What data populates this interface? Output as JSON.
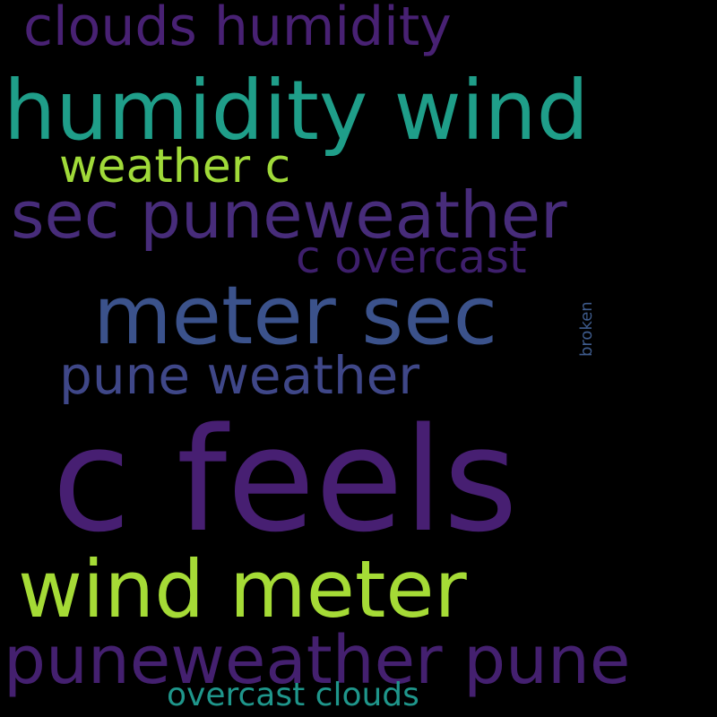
{
  "words": [
    {
      "text": "clouds humidity",
      "color": "#482173"
    },
    {
      "text": "humidity wind",
      "color": "#1f9e89"
    },
    {
      "text": "weather c",
      "color": "#a0da39"
    },
    {
      "text": "sec puneweather",
      "color": "#472c7a"
    },
    {
      "text": "c overcast",
      "color": "#3e1f6c"
    },
    {
      "text": "meter sec",
      "color": "#3b528b"
    },
    {
      "text": "pune weather",
      "color": "#3f4788"
    },
    {
      "text": "broken",
      "color": "#3e5b8c"
    },
    {
      "text": "c feels",
      "color": "#471f72"
    },
    {
      "text": "wind meter",
      "color": "#a5db36"
    },
    {
      "text": "puneweather pune",
      "color": "#44206f"
    },
    {
      "text": "overcast clouds",
      "color": "#1f968b"
    }
  ],
  "background": "#000000"
}
